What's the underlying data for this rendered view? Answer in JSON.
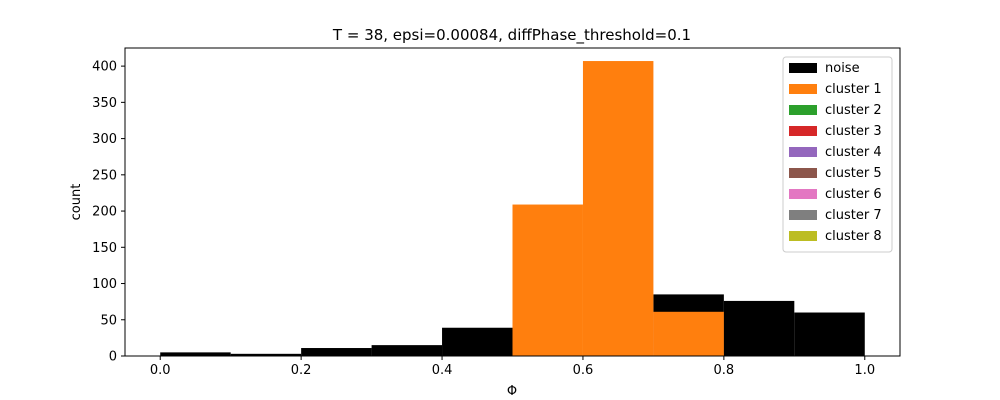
{
  "chart_data": {
    "type": "bar",
    "title": "T = 38, epsi=0.00084, diffPhase_threshold=0.1",
    "xlabel": "Φ",
    "ylabel": "count",
    "xlim": [
      -0.05,
      1.05
    ],
    "ylim": [
      0,
      425
    ],
    "xticks": [
      0.0,
      0.2,
      0.4,
      0.6,
      0.8,
      1.0
    ],
    "xtick_labels": [
      "0.0",
      "0.2",
      "0.4",
      "0.6",
      "0.8",
      "1.0"
    ],
    "yticks": [
      0,
      50,
      100,
      150,
      200,
      250,
      300,
      350,
      400
    ],
    "ytick_labels": [
      "0",
      "50",
      "100",
      "150",
      "200",
      "250",
      "300",
      "350",
      "400"
    ],
    "bin_edges": [
      0.0,
      0.1,
      0.2,
      0.3,
      0.4,
      0.5,
      0.6,
      0.7,
      0.8,
      0.9,
      1.0
    ],
    "grid": false,
    "legend_position": "top-right",
    "series": [
      {
        "name": "noise",
        "color": "#000000",
        "values": [
          5,
          3,
          11,
          15,
          39,
          0,
          0,
          85,
          76,
          60
        ]
      },
      {
        "name": "cluster 1",
        "color": "#ff7f0e",
        "values": [
          0,
          0,
          0,
          0,
          0,
          209,
          407,
          61,
          0,
          0
        ]
      },
      {
        "name": "cluster 2",
        "color": "#2ca02c",
        "values": [
          0,
          0,
          0,
          0,
          0,
          0,
          0,
          0,
          0,
          0
        ]
      },
      {
        "name": "cluster 3",
        "color": "#d62728",
        "values": [
          0,
          0,
          0,
          0,
          0,
          0,
          0,
          0,
          0,
          0
        ]
      },
      {
        "name": "cluster 4",
        "color": "#9467bd",
        "values": [
          0,
          0,
          0,
          0,
          0,
          0,
          0,
          0,
          0,
          0
        ]
      },
      {
        "name": "cluster 5",
        "color": "#8c564b",
        "values": [
          0,
          0,
          0,
          0,
          0,
          0,
          0,
          0,
          0,
          0
        ]
      },
      {
        "name": "cluster 6",
        "color": "#e377c2",
        "values": [
          0,
          0,
          0,
          0,
          0,
          0,
          0,
          0,
          0,
          0
        ]
      },
      {
        "name": "cluster 7",
        "color": "#7f7f7f",
        "values": [
          0,
          0,
          0,
          0,
          0,
          0,
          0,
          0,
          0,
          0
        ]
      },
      {
        "name": "cluster 8",
        "color": "#bcbd22",
        "values": [
          0,
          0,
          0,
          0,
          0,
          0,
          0,
          0,
          0,
          0
        ]
      }
    ]
  }
}
